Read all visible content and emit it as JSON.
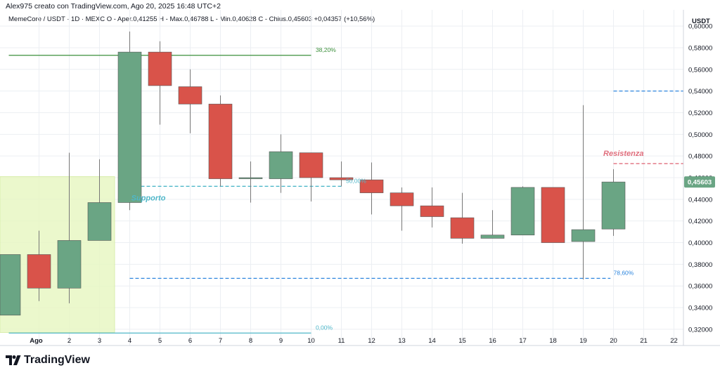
{
  "header": {
    "text": "Alex975 creato con TradingView.com, Ago 20, 2025 16:48 UTC+2"
  },
  "symbol_line": "MemeCore / USDT · 1D · MEXC  O - Aper.0,41255  H - Max.0,46788  L - Min.0,40628  C - Chius.0,45603  +0,04357 (+10,56%)",
  "logo": {
    "text": "TradingView",
    "icon": "tradingview-logo-icon"
  },
  "colors": {
    "up": "#6aa584",
    "down": "#d9534a",
    "grid": "#eceff3",
    "fib_green": "#3b8f3b",
    "support": "#4fb7c9",
    "dashed_blue": "#2e86de",
    "resistance": "#e06f7d",
    "zone": "#e8f7c4",
    "price_tag": "#6aa584"
  },
  "chart_data": {
    "type": "candlestick",
    "currency": "USDT",
    "ylim": [
      0.305,
      0.615
    ],
    "y_ticks": [
      0.6,
      0.58,
      0.56,
      0.54,
      0.52,
      0.5,
      0.48,
      0.46,
      0.44,
      0.42,
      0.4,
      0.38,
      0.36,
      0.34,
      0.32
    ],
    "y_tick_labels": [
      "0,60000",
      "0,58000",
      "0,56000",
      "0,54000",
      "0,52000",
      "0,50000",
      "0,48000",
      "0,46000",
      "0,44000",
      "0,42000",
      "0,40000",
      "0,38000",
      "0,36000",
      "0,34000",
      "0,32000"
    ],
    "x_labels": [
      "Ago",
      "2",
      "3",
      "4",
      "5",
      "6",
      "7",
      "8",
      "9",
      "10",
      "11",
      "12",
      "13",
      "14",
      "15",
      "16",
      "17",
      "18",
      "19",
      "20",
      "21",
      "22"
    ],
    "x_label_day": [
      1,
      2,
      3,
      4,
      5,
      6,
      7,
      8,
      9,
      10,
      11,
      12,
      13,
      14,
      15,
      16,
      17,
      18,
      19,
      20,
      21,
      22
    ],
    "candles": [
      {
        "day": 0,
        "o": 0.333,
        "h": 0.389,
        "l": 0.333,
        "c": 0.389
      },
      {
        "day": 1,
        "o": 0.389,
        "h": 0.411,
        "l": 0.346,
        "c": 0.358
      },
      {
        "day": 2,
        "o": 0.358,
        "h": 0.483,
        "l": 0.344,
        "c": 0.402
      },
      {
        "day": 3,
        "o": 0.402,
        "h": 0.477,
        "l": 0.402,
        "c": 0.437
      },
      {
        "day": 4,
        "o": 0.437,
        "h": 0.595,
        "l": 0.43,
        "c": 0.576
      },
      {
        "day": 5,
        "o": 0.576,
        "h": 0.586,
        "l": 0.509,
        "c": 0.545
      },
      {
        "day": 6,
        "o": 0.544,
        "h": 0.56,
        "l": 0.501,
        "c": 0.528
      },
      {
        "day": 7,
        "o": 0.528,
        "h": 0.536,
        "l": 0.452,
        "c": 0.459
      },
      {
        "day": 8,
        "o": 0.459,
        "h": 0.475,
        "l": 0.437,
        "c": 0.46
      },
      {
        "day": 9,
        "o": 0.459,
        "h": 0.5,
        "l": 0.446,
        "c": 0.484
      },
      {
        "day": 10,
        "o": 0.483,
        "h": 0.483,
        "l": 0.438,
        "c": 0.46
      },
      {
        "day": 11,
        "o": 0.46,
        "h": 0.475,
        "l": 0.452,
        "c": 0.458
      },
      {
        "day": 12,
        "o": 0.458,
        "h": 0.474,
        "l": 0.426,
        "c": 0.446
      },
      {
        "day": 13,
        "o": 0.446,
        "h": 0.451,
        "l": 0.411,
        "c": 0.434
      },
      {
        "day": 14,
        "o": 0.434,
        "h": 0.451,
        "l": 0.414,
        "c": 0.424
      },
      {
        "day": 15,
        "o": 0.423,
        "h": 0.446,
        "l": 0.399,
        "c": 0.404
      },
      {
        "day": 16,
        "o": 0.404,
        "h": 0.43,
        "l": 0.404,
        "c": 0.407
      },
      {
        "day": 17,
        "o": 0.407,
        "h": 0.452,
        "l": 0.407,
        "c": 0.451
      },
      {
        "day": 18,
        "o": 0.451,
        "h": 0.451,
        "l": 0.4,
        "c": 0.4
      },
      {
        "day": 19,
        "o": 0.401,
        "h": 0.527,
        "l": 0.366,
        "c": 0.412
      },
      {
        "day": 20,
        "o": 0.41255,
        "h": 0.46788,
        "l": 0.40628,
        "c": 0.45603
      }
    ],
    "last_price_label": "0,45603",
    "last_price": 0.45603,
    "annotations": [
      {
        "name": "fib-38-line",
        "price": 0.573,
        "from_day": 0,
        "to_day": 10,
        "style": "solid",
        "color_key": "fib_green",
        "label": "38,20%",
        "label_day": 10.15
      },
      {
        "name": "fib-50-line",
        "price": 0.452,
        "from_day": 4,
        "to_day": 11,
        "style": "dashed",
        "color_key": "support",
        "label": "50,00%",
        "label_day": 11.15
      },
      {
        "name": "fib-78-line",
        "price": 0.367,
        "from_day": 4,
        "to_day": 19.9,
        "style": "dashed",
        "color_key": "dashed_blue",
        "label": "78,60%",
        "label_day": 20.0
      },
      {
        "name": "fib-0-line",
        "price": 0.3165,
        "from_day": 0,
        "to_day": 10,
        "style": "solid",
        "color_key": "support",
        "label": "0,00%",
        "label_day": 10.15
      },
      {
        "name": "resistance-line",
        "price": 0.473,
        "from_day": 20,
        "to_day": 22.7,
        "style": "dashed",
        "color_key": "resistance",
        "label": "",
        "label_day": 0
      },
      {
        "name": "upper-target-line",
        "price": 0.54,
        "from_day": 20,
        "to_day": 22.7,
        "style": "dashed",
        "color_key": "dashed_blue",
        "label": "",
        "label_day": 0
      }
    ],
    "zone": {
      "from_price": 0.317,
      "to_price": 0.461,
      "from_day": -0.5,
      "to_day": 3.5
    },
    "text_labels": [
      {
        "name": "support-label",
        "text": "Supporto",
        "price": 0.439,
        "day": 4.05,
        "color_key": "support"
      },
      {
        "name": "resistance-label",
        "text": "Resistenza",
        "price": 0.48,
        "day": 21.0,
        "color_key": "resistance"
      }
    ]
  }
}
